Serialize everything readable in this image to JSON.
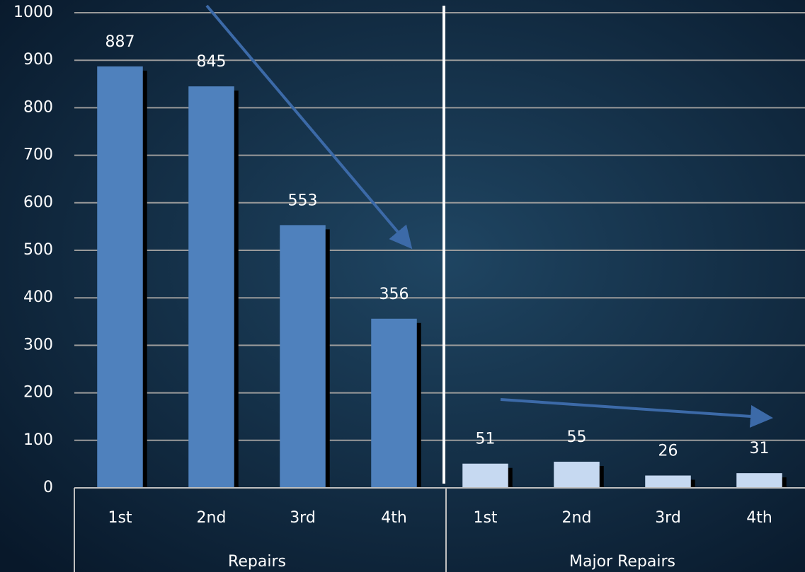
{
  "chart_data": {
    "type": "bar",
    "groups": [
      {
        "name": "Repairs",
        "color": "#4f81bd",
        "categories": [
          "1st",
          "2nd",
          "3rd",
          "4th"
        ],
        "values": [
          887,
          845,
          553,
          356
        ]
      },
      {
        "name": "Major Repairs",
        "color": "#c6d9f1",
        "categories": [
          "1st",
          "2nd",
          "3rd",
          "4th"
        ],
        "values": [
          51,
          55,
          26,
          31
        ]
      }
    ],
    "ylim": [
      0,
      1000
    ],
    "yticks": [
      0,
      100,
      200,
      300,
      400,
      500,
      600,
      700,
      800,
      900,
      1000
    ],
    "grid": true
  }
}
